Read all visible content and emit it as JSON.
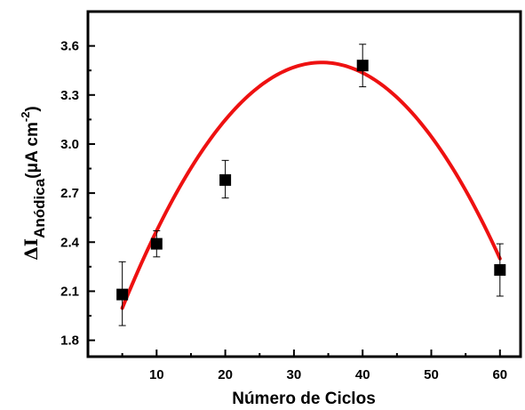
{
  "chart_data": {
    "type": "scatter",
    "xlabel": "Número de Ciclos",
    "ylabel": {
      "prefix": "ΔI",
      "subscript": "Anódica",
      "units_open": "(μA cm",
      "units_exponent": "-2",
      "units_close": ")"
    },
    "xlim": [
      0,
      63
    ],
    "ylim": [
      1.7,
      3.81
    ],
    "xticks": [
      10,
      20,
      30,
      40,
      50,
      60
    ],
    "yticks": [
      1.8,
      2.1,
      2.4,
      2.7,
      3.0,
      3.3,
      3.6
    ],
    "ytick_labels": [
      "1.8",
      "2.1",
      "2.4",
      "2.7",
      "3.0",
      "3.3",
      "3.6"
    ],
    "grid": false,
    "series": [
      {
        "marker": "square",
        "color": "#000000",
        "x": [
          5,
          10,
          20,
          40,
          60
        ],
        "y": [
          2.08,
          2.39,
          2.78,
          3.48,
          2.23
        ],
        "err_low": [
          0.19,
          0.08,
          0.11,
          0.13,
          0.16
        ],
        "err_high": [
          0.2,
          0.08,
          0.12,
          0.13,
          0.16
        ]
      },
      {
        "type": "line",
        "color": "#ee1111",
        "fit": "quadratic",
        "x_range": [
          5,
          60
        ],
        "coefficients": [
          1.435,
          0.12124,
          -0.0017806
        ]
      }
    ]
  }
}
